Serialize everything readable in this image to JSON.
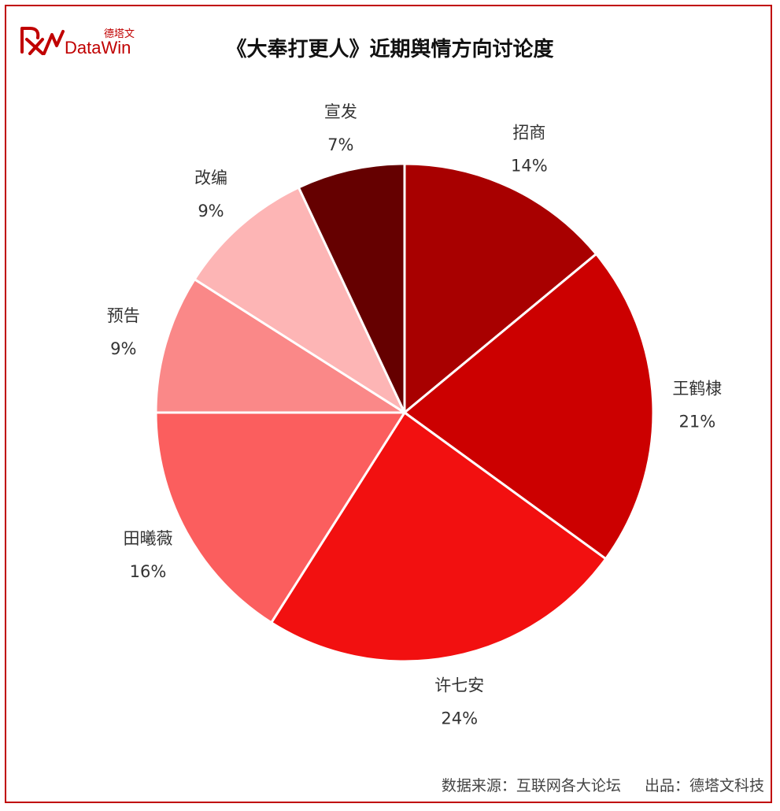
{
  "title": "《大奉打更人》近期舆情方向讨论度",
  "logo": {
    "cn": "德塔文",
    "en": "DataWin"
  },
  "footer": {
    "source": "数据来源：互联网各大论坛",
    "producer": "出品：德塔文科技"
  },
  "colors": {
    "border": "#c00000",
    "brand": "#c00000"
  },
  "chart_data": {
    "type": "pie",
    "title": "《大奉打更人》近期舆情方向讨论度",
    "slices": [
      {
        "label": "招商",
        "value": 14,
        "pct_label": "14%",
        "color": "#a80000"
      },
      {
        "label": "王鹤棣",
        "value": 21,
        "pct_label": "21%",
        "color": "#cc0000"
      },
      {
        "label": "许七安",
        "value": 24,
        "pct_label": "24%",
        "color": "#f21010"
      },
      {
        "label": "田曦薇",
        "value": 16,
        "pct_label": "16%",
        "color": "#fb5e5e"
      },
      {
        "label": "预告",
        "value": 9,
        "pct_label": "9%",
        "color": "#fa8888"
      },
      {
        "label": "改编",
        "value": 9,
        "pct_label": "9%",
        "color": "#fdb5b5"
      },
      {
        "label": "宣发",
        "value": 7,
        "pct_label": "7%",
        "color": "#650000"
      }
    ],
    "start": "top",
    "direction": "clockwise"
  }
}
